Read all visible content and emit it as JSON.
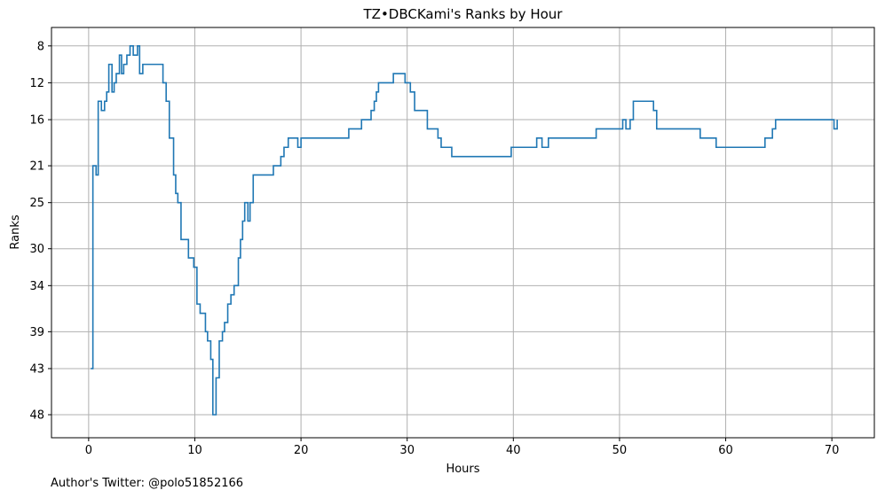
{
  "chart_data": {
    "type": "line",
    "title": "TZ•DBCKami's Ranks by Hour",
    "xlabel": "Hours",
    "ylabel": "Ranks",
    "xlim": [
      -3.5,
      74
    ],
    "ylim": [
      50.5,
      6
    ],
    "y_inverted": true,
    "grid": true,
    "line_style": "step",
    "x_ticks": [
      0,
      10,
      20,
      30,
      40,
      50,
      60,
      70
    ],
    "y_ticks": [
      8,
      12,
      16,
      21,
      25,
      30,
      34,
      39,
      43,
      48
    ],
    "series": [
      {
        "color": "#1f77b4",
        "points": [
          [
            0.2,
            43
          ],
          [
            0.4,
            21
          ],
          [
            0.7,
            22
          ],
          [
            0.9,
            14
          ],
          [
            1.2,
            15
          ],
          [
            1.5,
            14
          ],
          [
            1.7,
            13
          ],
          [
            1.9,
            10
          ],
          [
            2.2,
            13
          ],
          [
            2.4,
            12
          ],
          [
            2.6,
            11
          ],
          [
            2.9,
            9
          ],
          [
            3.1,
            11
          ],
          [
            3.3,
            10
          ],
          [
            3.6,
            9
          ],
          [
            3.9,
            8
          ],
          [
            4.2,
            9
          ],
          [
            4.6,
            8
          ],
          [
            4.8,
            11
          ],
          [
            5.1,
            10
          ],
          [
            7.0,
            12
          ],
          [
            7.3,
            14
          ],
          [
            7.6,
            18
          ],
          [
            8.0,
            22
          ],
          [
            8.2,
            24
          ],
          [
            8.4,
            25
          ],
          [
            8.7,
            29
          ],
          [
            9.4,
            31
          ],
          [
            9.9,
            32
          ],
          [
            10.2,
            36
          ],
          [
            10.5,
            37
          ],
          [
            11.0,
            39
          ],
          [
            11.2,
            40
          ],
          [
            11.5,
            42
          ],
          [
            11.7,
            48
          ],
          [
            12.0,
            44
          ],
          [
            12.3,
            40
          ],
          [
            12.6,
            39
          ],
          [
            12.8,
            38
          ],
          [
            13.1,
            36
          ],
          [
            13.4,
            35
          ],
          [
            13.7,
            34
          ],
          [
            14.1,
            31
          ],
          [
            14.3,
            29
          ],
          [
            14.5,
            27
          ],
          [
            14.7,
            25
          ],
          [
            15.0,
            27
          ],
          [
            15.2,
            25
          ],
          [
            15.5,
            22
          ],
          [
            17.4,
            21
          ],
          [
            18.1,
            20
          ],
          [
            18.4,
            19
          ],
          [
            18.8,
            18
          ],
          [
            19.7,
            19
          ],
          [
            20.0,
            18
          ],
          [
            24.5,
            17
          ],
          [
            25.7,
            16
          ],
          [
            26.6,
            15
          ],
          [
            26.9,
            14
          ],
          [
            27.1,
            13
          ],
          [
            27.3,
            12
          ],
          [
            28.7,
            11
          ],
          [
            29.8,
            12
          ],
          [
            30.3,
            13
          ],
          [
            30.7,
            15
          ],
          [
            31.9,
            17
          ],
          [
            32.9,
            18
          ],
          [
            33.2,
            19
          ],
          [
            34.2,
            20
          ],
          [
            39.8,
            19
          ],
          [
            42.2,
            18
          ],
          [
            42.7,
            19
          ],
          [
            43.3,
            18
          ],
          [
            47.8,
            17
          ],
          [
            50.3,
            16
          ],
          [
            50.6,
            17
          ],
          [
            51.0,
            16
          ],
          [
            51.3,
            14
          ],
          [
            53.2,
            15
          ],
          [
            53.5,
            17
          ],
          [
            57.6,
            18
          ],
          [
            59.1,
            19
          ],
          [
            63.7,
            18
          ],
          [
            64.4,
            17
          ],
          [
            64.7,
            16
          ],
          [
            70.2,
            17
          ],
          [
            70.5,
            16
          ]
        ]
      }
    ]
  },
  "footer": {
    "credit": "Author's Twitter: @polo51852166"
  }
}
